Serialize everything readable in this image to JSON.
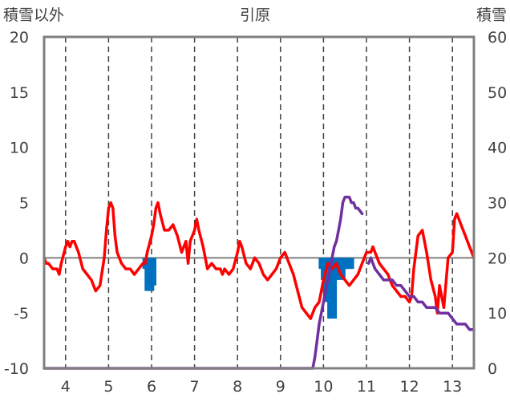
{
  "chart_data": {
    "type": "line",
    "title": "引原",
    "ylabel_left": "積雪以外",
    "ylabel_right": "積雪",
    "x_ticks": [
      "4",
      "5",
      "6",
      "7",
      "8",
      "9",
      "10",
      "11",
      "12",
      "13"
    ],
    "x_range": [
      3.5,
      13.5
    ],
    "y_left_ticks": [
      "-10",
      "-5",
      "0",
      "5",
      "10",
      "15",
      "20"
    ],
    "y_left_range": [
      -10,
      20
    ],
    "y_right_ticks": [
      "0",
      "10",
      "20",
      "30",
      "40",
      "50",
      "60"
    ],
    "y_right_range": [
      0,
      60
    ],
    "grid": "vertical-dashed",
    "colors": {
      "temperature": "#ff0000",
      "snow_depth": "#7030a0",
      "precipitation": "#0070c0",
      "axis": "#808080"
    },
    "series": [
      {
        "role": "temperature",
        "axis": "left",
        "x": [
          3.5,
          3.55,
          3.6,
          3.7,
          3.8,
          3.85,
          3.9,
          4.0,
          4.05,
          4.1,
          4.15,
          4.2,
          4.3,
          4.4,
          4.5,
          4.6,
          4.7,
          4.8,
          4.9,
          4.95,
          5.0,
          5.05,
          5.1,
          5.15,
          5.2,
          5.3,
          5.4,
          5.5,
          5.6,
          5.7,
          5.8,
          5.85,
          5.9,
          6.0,
          6.05,
          6.1,
          6.15,
          6.2,
          6.3,
          6.4,
          6.5,
          6.6,
          6.7,
          6.8,
          6.85,
          6.9,
          7.0,
          7.05,
          7.1,
          7.2,
          7.3,
          7.4,
          7.5,
          7.6,
          7.65,
          7.7,
          7.8,
          7.9,
          8.0,
          8.05,
          8.1,
          8.2,
          8.3,
          8.4,
          8.5,
          8.6,
          8.7,
          8.8,
          8.9,
          9.0,
          9.1,
          9.2,
          9.3,
          9.4,
          9.5,
          9.6,
          9.7,
          9.8,
          9.9,
          10.0,
          10.1,
          10.2,
          10.3,
          10.4,
          10.5,
          10.6,
          10.7,
          10.8,
          10.9,
          11.0,
          11.1,
          11.15,
          11.2,
          11.3,
          11.4,
          11.5,
          11.6,
          11.7,
          11.8,
          11.9,
          12.0,
          12.05,
          12.1,
          12.2,
          12.3,
          12.4,
          12.5,
          12.6,
          12.65,
          12.7,
          12.75,
          12.8,
          12.9,
          13.0,
          13.05,
          13.1,
          13.2,
          13.3,
          13.4,
          13.5
        ],
        "y": [
          0.0,
          -0.5,
          -0.5,
          -1.0,
          -1.0,
          -1.5,
          -0.5,
          1.0,
          1.5,
          1.0,
          1.5,
          1.5,
          0.5,
          -1.0,
          -1.5,
          -2.0,
          -3.0,
          -2.5,
          0.0,
          2.5,
          4.5,
          5.0,
          4.5,
          2.0,
          0.5,
          -0.5,
          -1.0,
          -1.0,
          -1.5,
          -1.0,
          -0.5,
          -0.5,
          0.5,
          2.0,
          3.0,
          4.5,
          5.0,
          4.0,
          2.5,
          2.5,
          3.0,
          2.0,
          0.5,
          1.5,
          -0.5,
          1.5,
          2.5,
          3.5,
          2.5,
          1.0,
          -1.0,
          -0.5,
          -1.0,
          -1.0,
          -1.5,
          -1.0,
          -1.5,
          -1.0,
          0.5,
          1.5,
          1.0,
          -0.5,
          -1.0,
          0.0,
          -0.5,
          -1.5,
          -2.0,
          -1.5,
          -1.0,
          0.0,
          0.5,
          -0.5,
          -1.5,
          -3.0,
          -4.5,
          -5.0,
          -5.5,
          -4.5,
          -4.0,
          -2.0,
          -0.5,
          -1.0,
          -0.5,
          -1.5,
          -2.0,
          -2.5,
          -2.0,
          -1.5,
          -0.5,
          0.5,
          0.5,
          1.0,
          0.5,
          -0.5,
          -1.0,
          -1.5,
          -2.5,
          -3.0,
          -3.5,
          -3.5,
          -4.0,
          -3.5,
          -1.0,
          2.0,
          2.5,
          0.5,
          -2.0,
          -3.5,
          -5.0,
          -2.5,
          -3.5,
          -4.5,
          0.0,
          0.5,
          3.5,
          4.0,
          3.0,
          2.0,
          1.0,
          0.0
        ]
      },
      {
        "role": "snow_depth",
        "axis": "right",
        "x": [
          3.5,
          9.75,
          9.8,
          9.85,
          9.9,
          9.95,
          10.0,
          10.05,
          10.1,
          10.15,
          10.2,
          10.25,
          10.3,
          10.35,
          10.4,
          10.45,
          10.5,
          10.55,
          10.6,
          10.65,
          10.7,
          10.75,
          10.8,
          10.9
        ],
        "y": [
          0,
          0,
          2,
          5,
          8,
          10,
          12,
          14,
          16,
          18,
          20,
          22,
          23,
          25,
          27,
          30,
          31,
          31,
          31,
          30,
          30,
          29,
          29,
          28
        ]
      },
      {
        "role": "snow_depth",
        "axis": "right",
        "x": [
          11.05,
          11.1,
          11.2,
          11.3,
          11.4,
          11.5,
          11.6,
          11.7,
          11.8,
          11.9,
          12.0,
          12.1,
          12.2,
          12.3,
          12.4,
          12.5,
          12.6,
          12.7,
          12.8,
          12.9,
          13.0,
          13.1,
          13.2,
          13.3,
          13.4,
          13.5
        ],
        "y": [
          19,
          20,
          18,
          17,
          16,
          16,
          16,
          15,
          15,
          14,
          13,
          13,
          12,
          12,
          11,
          11,
          11,
          10,
          10,
          10,
          9,
          8,
          8,
          8,
          7,
          7
        ]
      }
    ],
    "precipitation": {
      "axis": "left",
      "x": [
        5.9,
        5.95,
        6.0,
        10.0,
        10.05,
        10.1,
        10.15,
        10.2,
        10.25,
        10.3,
        10.35,
        10.4,
        10.45,
        10.5,
        10.55,
        10.6
      ],
      "y": [
        -1.0,
        -3.0,
        -2.5,
        -1.0,
        -2.0,
        -4.0,
        -3.0,
        -5.5,
        -2.0,
        -1.5,
        -1.0,
        -2.0,
        -1.0,
        -1.0,
        -1.0,
        -1.0
      ]
    }
  }
}
